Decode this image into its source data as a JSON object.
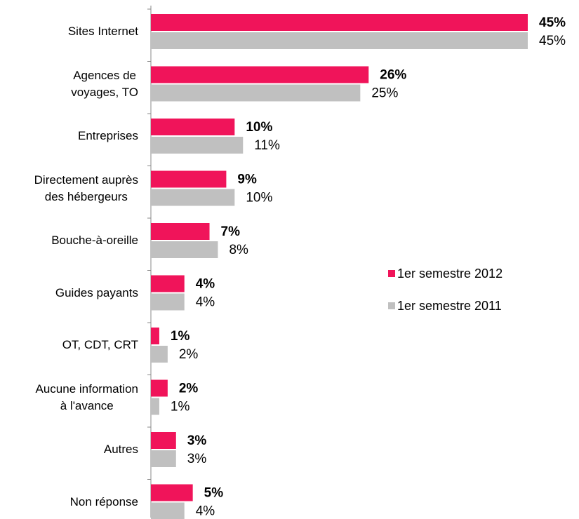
{
  "chart_data": {
    "type": "bar",
    "orientation": "horizontal",
    "categories": [
      "Sites Internet",
      "Agences de\nvoyages, TO",
      "Entreprises",
      "Directement auprès\ndes hébergeurs",
      "Bouche-à-oreille",
      "Guides payants",
      "OT, CDT, CRT",
      "Aucune information\nà l'avance",
      "Autres",
      "Non réponse"
    ],
    "series": [
      {
        "name": "1er semestre 2012",
        "color": "#f0145a",
        "values": [
          45,
          26,
          10,
          9,
          7,
          4,
          1,
          2,
          3,
          5
        ],
        "value_labels": [
          "45%",
          "26%",
          "10%",
          "9%",
          "7%",
          "4%",
          "1%",
          "2%",
          "3%",
          "5%"
        ]
      },
      {
        "name": "1er semestre 2011",
        "color": "#c0c0c0",
        "values": [
          45,
          25,
          11,
          10,
          8,
          4,
          2,
          1,
          3,
          4
        ],
        "value_labels": [
          "45%",
          "25%",
          "11%",
          "10%",
          "8%",
          "4%",
          "2%",
          "1%",
          "3%",
          "4%"
        ]
      }
    ],
    "legend": "right"
  }
}
